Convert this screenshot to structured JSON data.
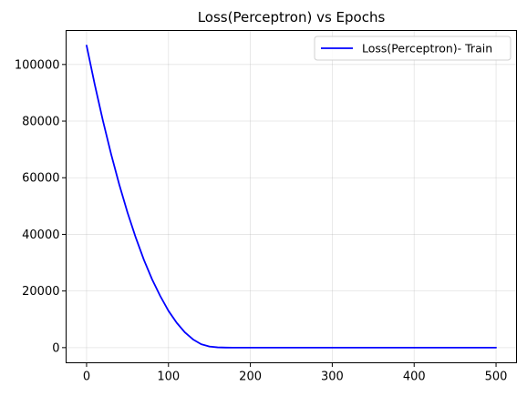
{
  "chart_data": {
    "type": "line",
    "title": "Loss(Perceptron) vs Epochs",
    "xlabel": "",
    "ylabel": "",
    "xlim": [
      -25,
      525
    ],
    "ylim": [
      -5350,
      112000
    ],
    "xticks": [
      0,
      100,
      200,
      300,
      400,
      500
    ],
    "yticks": [
      0,
      20000,
      40000,
      60000,
      80000,
      100000
    ],
    "grid": true,
    "legend": {
      "position": "top-right"
    },
    "series": [
      {
        "name": "Loss(Perceptron)- Train",
        "color": "#0000ff",
        "x": [
          0,
          10,
          20,
          30,
          40,
          50,
          60,
          70,
          80,
          90,
          100,
          110,
          120,
          130,
          140,
          150,
          160,
          170,
          180,
          190,
          200,
          250,
          300,
          350,
          400,
          450,
          500
        ],
        "y": [
          106700,
          92900,
          80100,
          68300,
          57500,
          47700,
          38900,
          31000,
          24100,
          18200,
          13000,
          8800,
          5400,
          2900,
          1200,
          400,
          100,
          20,
          0,
          0,
          0,
          0,
          0,
          0,
          0,
          0,
          0
        ]
      }
    ]
  }
}
